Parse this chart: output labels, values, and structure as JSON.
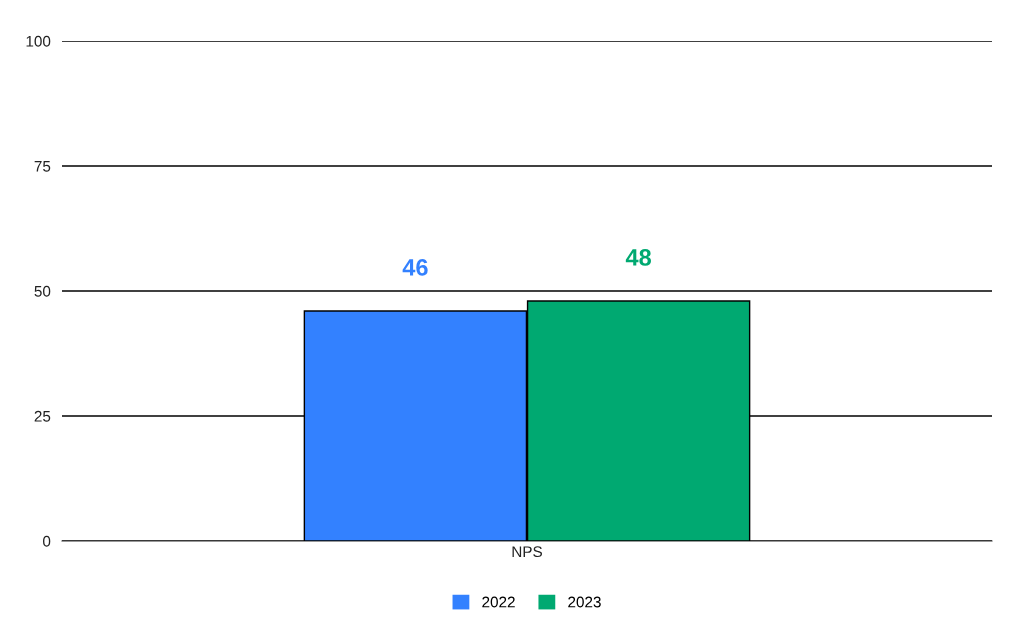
{
  "chart_data": {
    "type": "bar",
    "categories": [
      "NPS"
    ],
    "series": [
      {
        "name": "2022",
        "color": "#3381ff",
        "values": [
          46
        ]
      },
      {
        "name": "2023",
        "color": "#00a971",
        "values": [
          48
        ]
      }
    ],
    "ylim": [
      0,
      100
    ],
    "yticks": [
      0,
      25,
      50,
      75,
      100
    ],
    "grid": "y",
    "legend": "bottom",
    "data_labels": true
  }
}
